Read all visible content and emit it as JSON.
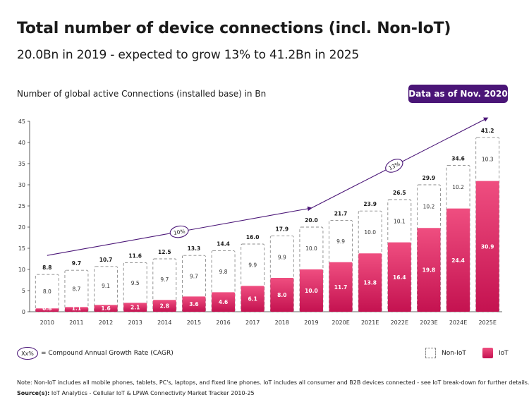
{
  "header": {
    "title": "Total number of device connections (incl. Non-IoT)",
    "subtitle": "20.0Bn in 2019 - expected to grow 13% to 41.2Bn in 2025",
    "chart_label": "Number of global active Connections (installed base) in Bn",
    "badge": "Data as of Nov. 2020"
  },
  "legend": {
    "cagr_symbol": "Xx%",
    "cagr_text": "= Compound Annual Growth Rate (CAGR)",
    "non_iot": "Non-IoT",
    "iot": "IoT"
  },
  "footer": {
    "note": "Note: Non-IoT includes all mobile phones, tablets, PC's, laptops, and fixed line phones. IoT includes all consumer and B2B devices connected - see IoT break-down for further details.",
    "source_label": "Source(s):",
    "source_text": " IoT Analytics - Cellular IoT & LPWA Connectivity Market Tracker 2010-25"
  },
  "colors": {
    "iot_top": "#ef4e80",
    "iot_bottom": "#c41250",
    "accent_purple": "#4a1577",
    "dashed_border": "#8a8a8a"
  },
  "chart_data": {
    "type": "bar",
    "stacked": true,
    "categories": [
      "2010",
      "2011",
      "2012",
      "2013",
      "2014",
      "2015",
      "2016",
      "2017",
      "2018",
      "2019",
      "2020E",
      "2021E",
      "2022E",
      "2023E",
      "2024E",
      "2025E"
    ],
    "series": [
      {
        "name": "IoT",
        "values": [
          0.8,
          1.1,
          1.6,
          2.1,
          2.8,
          3.6,
          4.6,
          6.1,
          8.0,
          10.0,
          11.7,
          13.8,
          16.4,
          19.8,
          24.4,
          30.9
        ]
      },
      {
        "name": "Non-IoT",
        "values": [
          8.0,
          8.7,
          9.1,
          9.5,
          9.7,
          9.7,
          9.8,
          9.9,
          9.9,
          10.0,
          9.9,
          10.0,
          10.1,
          10.2,
          10.2,
          10.3
        ]
      }
    ],
    "totals": [
      "8.8",
      "9.7",
      "10.7",
      "11.6",
      "12.5",
      "13.3",
      "14.4",
      "16.0",
      "17.9",
      "20.0",
      "21.7",
      "23.9",
      "26.5",
      "29.9",
      "34.6",
      "41.2"
    ],
    "iot_labels": [
      "0.8",
      "1.1",
      "1.6",
      "2.1",
      "2.8",
      "3.6",
      "4.6",
      "6.1",
      "8.0",
      "10.0",
      "11.7",
      "13.8",
      "16.4",
      "19.8",
      "24.4",
      "30.9"
    ],
    "non_iot_labels": [
      "8.0",
      "8.7",
      "9.1",
      "9.5",
      "9.7",
      "9.7",
      "9.8",
      "9.9",
      "9.9",
      "10.0",
      "9.9",
      "10.0",
      "10.1",
      "10.2",
      "10.2",
      "10.3"
    ],
    "ylim": [
      0,
      45
    ],
    "yticks": [
      0,
      5,
      10,
      15,
      20,
      25,
      30,
      35,
      40,
      45
    ],
    "cagr": [
      {
        "label": "10%",
        "from": "2010",
        "to": "2019"
      },
      {
        "label": "13%",
        "from": "2019",
        "to": "2025E"
      }
    ],
    "grid": false,
    "legend_position": "bottom-right"
  }
}
